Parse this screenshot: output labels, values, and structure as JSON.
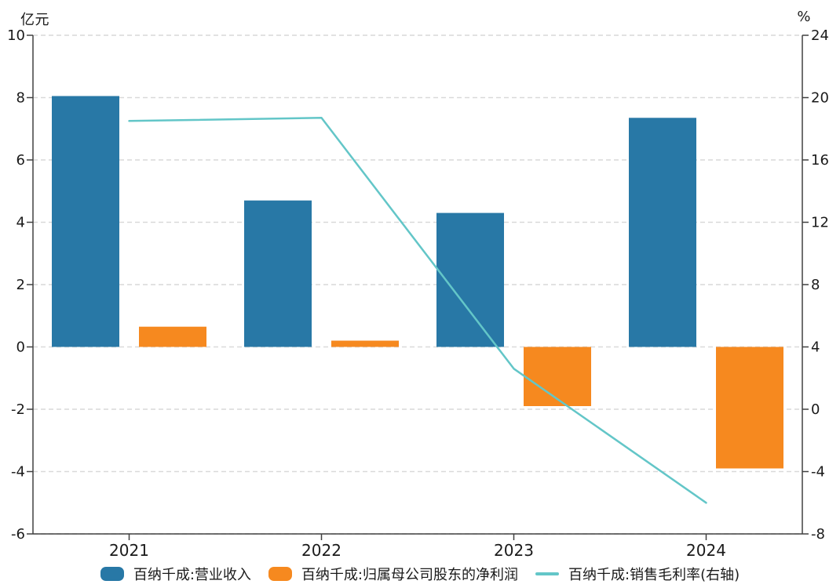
{
  "chart_data": {
    "type": "combo-bar-line",
    "categories": [
      "2021",
      "2022",
      "2023",
      "2024"
    ],
    "series": [
      {
        "name": "百纳千成:营业收入",
        "type": "bar",
        "axis": "left",
        "color": "#2878A6",
        "values": [
          8.05,
          4.7,
          4.3,
          7.35
        ]
      },
      {
        "name": "百纳千成:归属母公司股东的净利润",
        "type": "bar",
        "axis": "left",
        "color": "#F6891F",
        "values": [
          0.65,
          0.2,
          -1.9,
          -3.9
        ]
      },
      {
        "name": "百纳千成:销售毛利率(右轴)",
        "type": "line",
        "axis": "right",
        "color": "#63C6C8",
        "values": [
          18.5,
          18.7,
          2.6,
          -6.0
        ]
      }
    ],
    "left_axis": {
      "title": "亿元",
      "min": -6,
      "max": 10,
      "ticks": [
        10,
        8,
        6,
        4,
        2,
        0,
        -2,
        -4,
        -6
      ]
    },
    "right_axis": {
      "title": "%",
      "min": -8,
      "max": 24,
      "ticks": [
        24,
        20,
        16,
        12,
        8,
        4,
        0,
        -4,
        -8
      ]
    },
    "grid": {
      "horizontal": true,
      "style": "dashed",
      "color": "#D9D9D9"
    },
    "axis_color": "#404040",
    "text_color": "#1A1A1A",
    "legend_position": "bottom"
  }
}
